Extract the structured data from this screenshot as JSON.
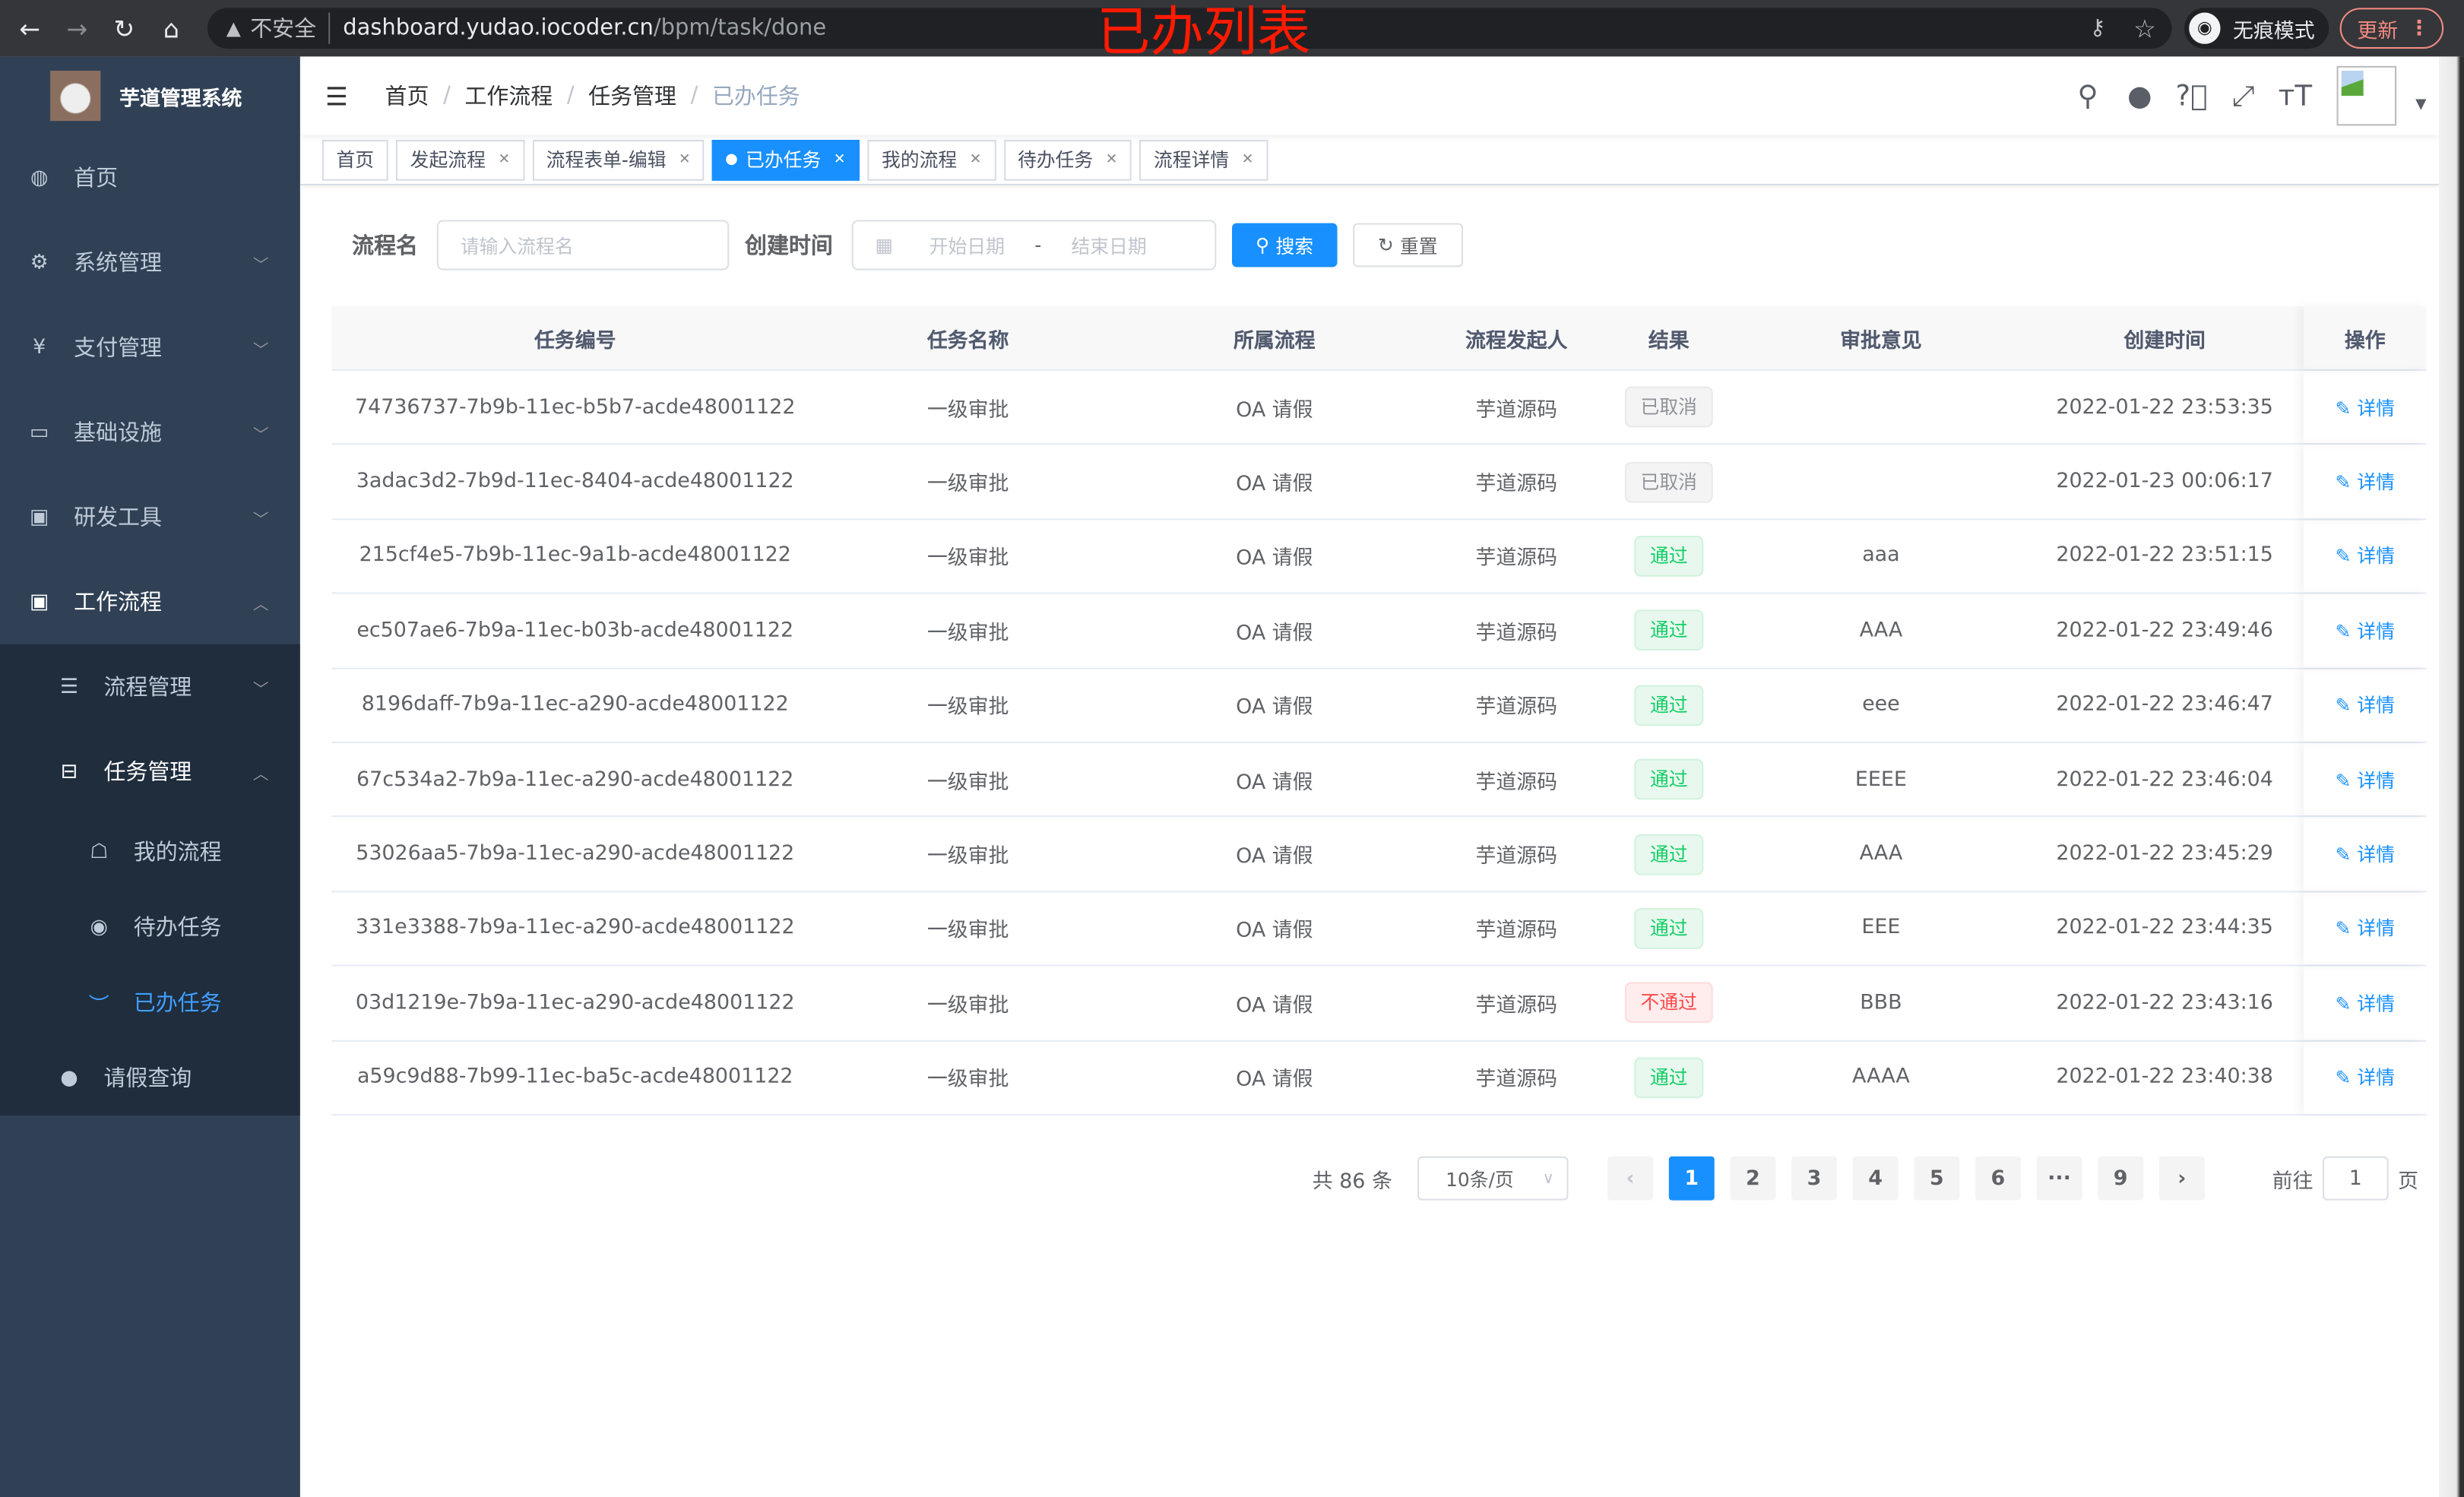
{
  "browser": {
    "insecure_label": "不安全",
    "url_host": "dashboard.yudao.iocoder.cn",
    "url_path": "/bpm/task/done",
    "incognito_label": "无痕模式",
    "update_label": "更新"
  },
  "annotation": "已办列表",
  "sidebar": {
    "title": "芋道管理系统",
    "items": [
      {
        "label": "首页",
        "icon": "dashboard-icon"
      },
      {
        "label": "系统管理",
        "icon": "gear-icon"
      },
      {
        "label": "支付管理",
        "icon": "yen-icon"
      },
      {
        "label": "基础设施",
        "icon": "monitor-icon"
      },
      {
        "label": "研发工具",
        "icon": "toolbox-icon"
      },
      {
        "label": "工作流程",
        "icon": "toolbox-icon"
      }
    ],
    "workflow_children": [
      {
        "label": "流程管理",
        "icon": "list-icon"
      },
      {
        "label": "任务管理",
        "icon": "tree-icon"
      }
    ],
    "task_children": [
      {
        "label": "我的流程",
        "icon": "chat-icon"
      },
      {
        "label": "待办任务",
        "icon": "eye-icon"
      },
      {
        "label": "已办任务",
        "icon": "checked-icon",
        "active": true
      }
    ],
    "leave": {
      "label": "请假查询",
      "icon": "user-icon"
    }
  },
  "breadcrumb": [
    "首页",
    "工作流程",
    "任务管理",
    "已办任务"
  ],
  "tags": [
    {
      "label": "首页"
    },
    {
      "label": "发起流程"
    },
    {
      "label": "流程表单-编辑"
    },
    {
      "label": "已办任务",
      "active": true
    },
    {
      "label": "我的流程"
    },
    {
      "label": "待办任务"
    },
    {
      "label": "流程详情"
    }
  ],
  "search": {
    "name_label": "流程名",
    "name_placeholder": "请输入流程名",
    "time_label": "创建时间",
    "start_placeholder": "开始日期",
    "range_sep": "-",
    "end_placeholder": "结束日期",
    "search_button": "搜索",
    "reset_button": "重置"
  },
  "table": {
    "columns": [
      "任务编号",
      "任务名称",
      "所属流程",
      "流程发起人",
      "结果",
      "审批意见",
      "创建时间",
      "操作"
    ],
    "action_label": "详情",
    "rows": [
      {
        "id": "74736737-7b9b-11ec-b5b7-acde48001122",
        "name": "一级审批",
        "process": "OA 请假",
        "starter": "芋道源码",
        "result": "已取消",
        "status": "cancel",
        "comment": "",
        "time": "2022-01-22 23:53:35"
      },
      {
        "id": "3adac3d2-7b9d-11ec-8404-acde48001122",
        "name": "一级审批",
        "process": "OA 请假",
        "starter": "芋道源码",
        "result": "已取消",
        "status": "cancel",
        "comment": "",
        "time": "2022-01-23 00:06:17"
      },
      {
        "id": "215cf4e5-7b9b-11ec-9a1b-acde48001122",
        "name": "一级审批",
        "process": "OA 请假",
        "starter": "芋道源码",
        "result": "通过",
        "status": "pass",
        "comment": "aaa",
        "time": "2022-01-22 23:51:15"
      },
      {
        "id": "ec507ae6-7b9a-11ec-b03b-acde48001122",
        "name": "一级审批",
        "process": "OA 请假",
        "starter": "芋道源码",
        "result": "通过",
        "status": "pass",
        "comment": "AAA",
        "time": "2022-01-22 23:49:46"
      },
      {
        "id": "8196daff-7b9a-11ec-a290-acde48001122",
        "name": "一级审批",
        "process": "OA 请假",
        "starter": "芋道源码",
        "result": "通过",
        "status": "pass",
        "comment": "eee",
        "time": "2022-01-22 23:46:47"
      },
      {
        "id": "67c534a2-7b9a-11ec-a290-acde48001122",
        "name": "一级审批",
        "process": "OA 请假",
        "starter": "芋道源码",
        "result": "通过",
        "status": "pass",
        "comment": "EEEE",
        "time": "2022-01-22 23:46:04"
      },
      {
        "id": "53026aa5-7b9a-11ec-a290-acde48001122",
        "name": "一级审批",
        "process": "OA 请假",
        "starter": "芋道源码",
        "result": "通过",
        "status": "pass",
        "comment": "AAA",
        "time": "2022-01-22 23:45:29"
      },
      {
        "id": "331e3388-7b9a-11ec-a290-acde48001122",
        "name": "一级审批",
        "process": "OA 请假",
        "starter": "芋道源码",
        "result": "通过",
        "status": "pass",
        "comment": "EEE",
        "time": "2022-01-22 23:44:35"
      },
      {
        "id": "03d1219e-7b9a-11ec-a290-acde48001122",
        "name": "一级审批",
        "process": "OA 请假",
        "starter": "芋道源码",
        "result": "不通过",
        "status": "reject",
        "comment": "BBB",
        "time": "2022-01-22 23:43:16"
      },
      {
        "id": "a59c9d88-7b99-11ec-ba5c-acde48001122",
        "name": "一级审批",
        "process": "OA 请假",
        "starter": "芋道源码",
        "result": "通过",
        "status": "pass",
        "comment": "AAAA",
        "time": "2022-01-22 23:40:38"
      }
    ]
  },
  "status_colors": {
    "cancel": {
      "bg": "#f4f4f5",
      "border": "#e9e9eb",
      "text": "#909399"
    },
    "pass": {
      "bg": "#e8f8ee",
      "border": "#d1f2dc",
      "text": "#13ce66"
    },
    "reject": {
      "bg": "#ffeded",
      "border": "#ffdbdb",
      "text": "#ff4949"
    }
  },
  "pagination": {
    "total_text": "共 86 条",
    "page_size": "10条/页",
    "pages": [
      "1",
      "2",
      "3",
      "4",
      "5",
      "6",
      "···",
      "9"
    ],
    "current_page": "1",
    "goto_label": "前往",
    "goto_value": "1",
    "page_suffix": "页"
  },
  "accent_color": "#1890ff"
}
